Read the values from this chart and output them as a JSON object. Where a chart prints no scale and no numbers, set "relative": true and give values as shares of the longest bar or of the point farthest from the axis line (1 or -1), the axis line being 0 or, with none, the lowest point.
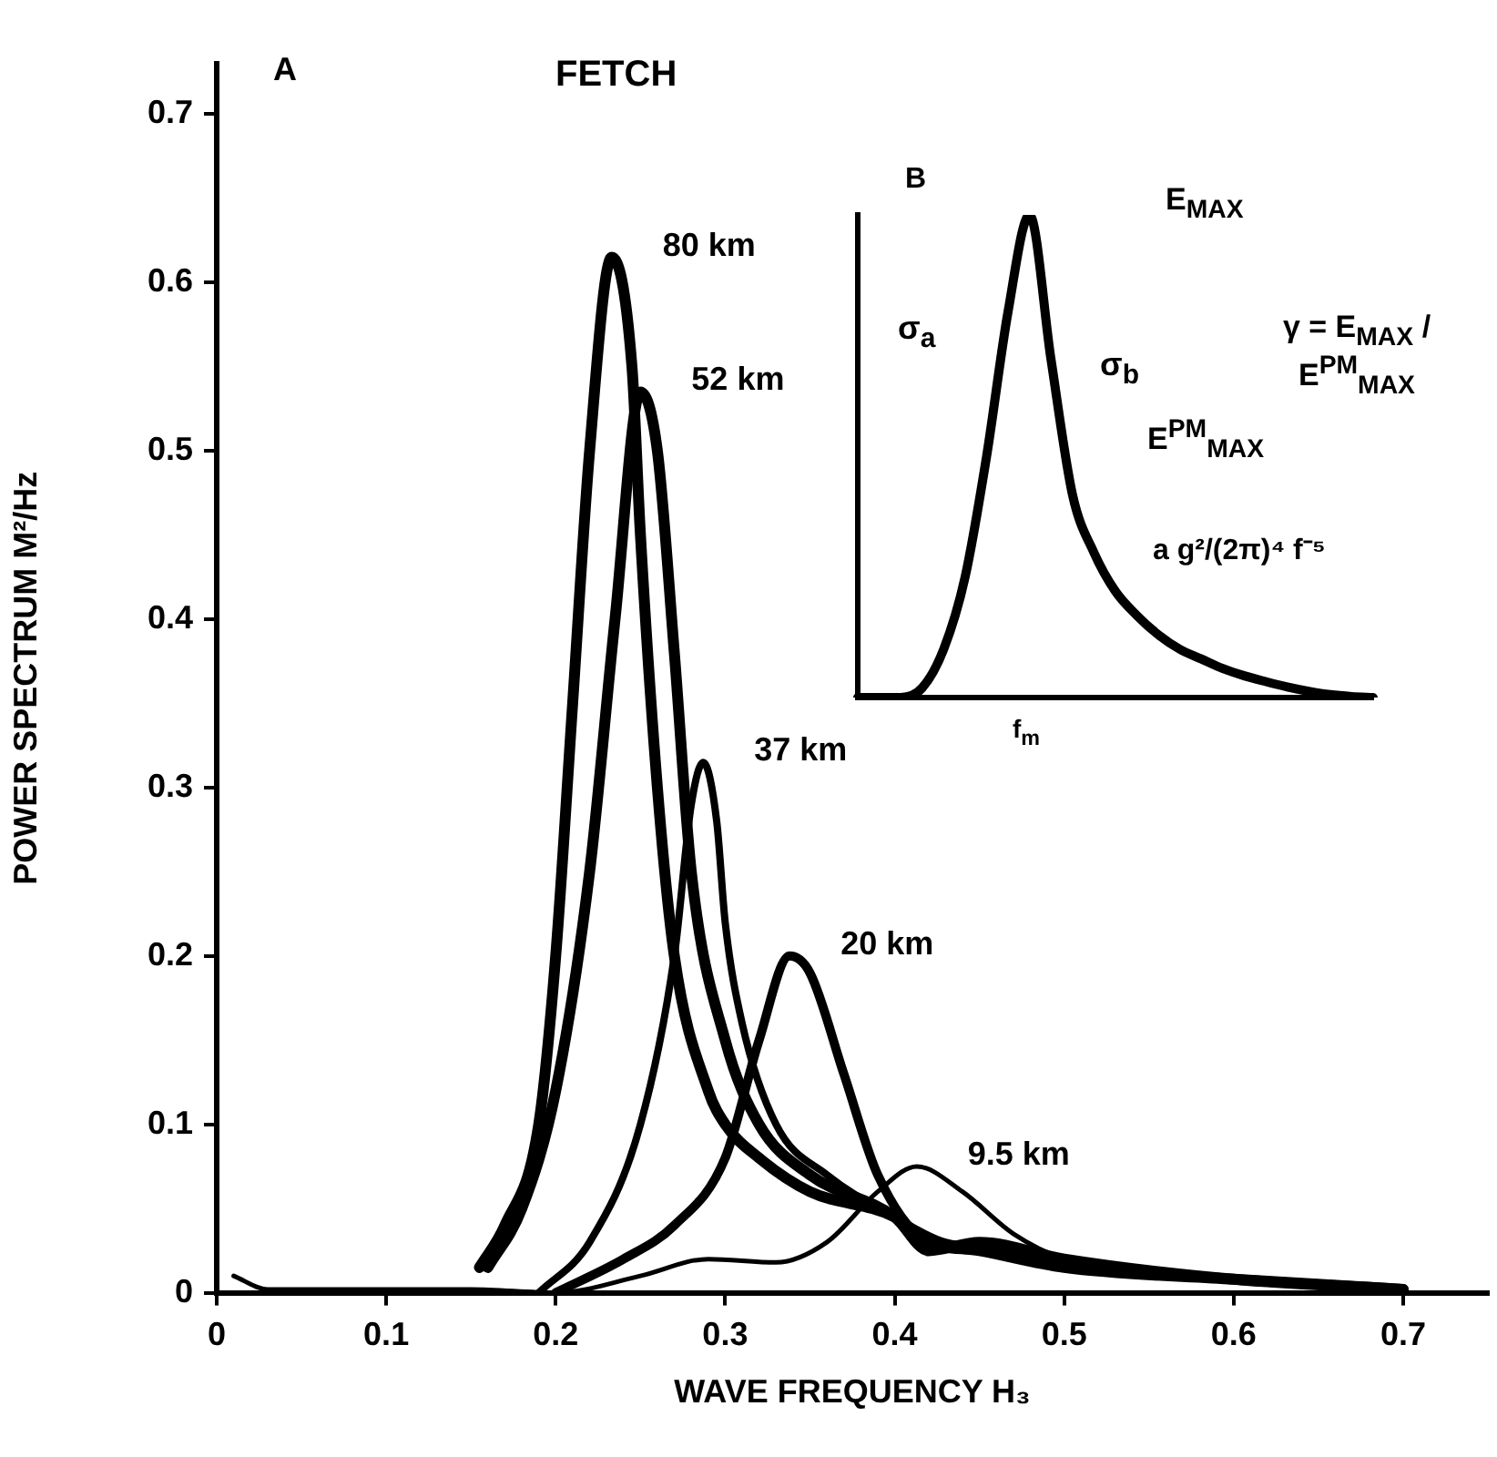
{
  "chart_data": [
    {
      "type": "line",
      "title": "FETCH",
      "xlabel": "WAVE FREQUENCY H₃",
      "ylabel": "POWER SPECTRUM M²/Hz",
      "annotations": [
        "A"
      ],
      "marker": "none",
      "xlim": [
        0,
        0.75
      ],
      "ylim": [
        0,
        0.73
      ],
      "xticks": [
        0,
        0.1,
        0.2,
        0.3,
        0.4,
        0.5,
        0.6,
        0.7
      ],
      "yticks": [
        0,
        0.1,
        0.2,
        0.3,
        0.4,
        0.5,
        0.6,
        0.7
      ],
      "series": [
        {
          "name": "80 km",
          "color": "#000000",
          "x": [
            0.155,
            0.17,
            0.19,
            0.2,
            0.21,
            0.22,
            0.233,
            0.245,
            0.25,
            0.26,
            0.27,
            0.29,
            0.3,
            0.32,
            0.35,
            0.4,
            0.42,
            0.45,
            0.5,
            0.6,
            0.7
          ],
          "values": [
            0.015,
            0.04,
            0.1,
            0.2,
            0.35,
            0.5,
            0.615,
            0.55,
            0.45,
            0.3,
            0.2,
            0.12,
            0.1,
            0.08,
            0.06,
            0.045,
            0.03,
            0.025,
            0.015,
            0.008,
            0.002
          ]
        },
        {
          "name": "52 km",
          "color": "#000000",
          "x": [
            0.16,
            0.18,
            0.2,
            0.22,
            0.235,
            0.25,
            0.26,
            0.27,
            0.28,
            0.3,
            0.32,
            0.35,
            0.4,
            0.42,
            0.45,
            0.5,
            0.6,
            0.7
          ],
          "values": [
            0.015,
            0.05,
            0.12,
            0.25,
            0.4,
            0.535,
            0.5,
            0.38,
            0.25,
            0.15,
            0.1,
            0.07,
            0.045,
            0.025,
            0.03,
            0.02,
            0.008,
            0.002
          ]
        },
        {
          "name": "37 km",
          "color": "#000000",
          "x": [
            0.19,
            0.22,
            0.25,
            0.27,
            0.28,
            0.287,
            0.295,
            0.3,
            0.31,
            0.33,
            0.36,
            0.4,
            0.43,
            0.46,
            0.5,
            0.6,
            0.7
          ],
          "values": [
            0,
            0.03,
            0.1,
            0.2,
            0.29,
            0.315,
            0.28,
            0.22,
            0.16,
            0.1,
            0.07,
            0.045,
            0.03,
            0.027,
            0.02,
            0.008,
            0.002
          ]
        },
        {
          "name": "20 km",
          "color": "#000000",
          "x": [
            0.2,
            0.24,
            0.27,
            0.3,
            0.32,
            0.338,
            0.35,
            0.37,
            0.39,
            0.42,
            0.45,
            0.5,
            0.6,
            0.7
          ],
          "values": [
            0,
            0.02,
            0.04,
            0.08,
            0.15,
            0.2,
            0.19,
            0.13,
            0.07,
            0.03,
            0.025,
            0.015,
            0.008,
            0.002
          ]
        },
        {
          "name": "9.5 km",
          "color": "#000000",
          "x": [
            0.01,
            0.03,
            0.15,
            0.2,
            0.25,
            0.29,
            0.33,
            0.36,
            0.39,
            0.413,
            0.44,
            0.47,
            0.5,
            0.55,
            0.6,
            0.7
          ],
          "values": [
            0.01,
            0.002,
            0.002,
            0,
            0.01,
            0.02,
            0.018,
            0.03,
            0.06,
            0.075,
            0.06,
            0.035,
            0.02,
            0.012,
            0.008,
            0.002
          ]
        }
      ]
    },
    {
      "type": "line",
      "relative": true,
      "marker": "none",
      "annotations": [
        "B",
        "E$_{MAX}$",
        "σ$_{a}$",
        "σ$_{b}$",
        "E$^{PM}$$_{MAX}$",
        "γ = E$_{MAX}$ / E$^{PM}$$_{MAX}$",
        "a g²/(2π)⁴ f⁻⁵",
        "f$_{m}$"
      ],
      "categories": [
        null,
        null,
        null,
        null,
        null,
        null,
        null,
        null,
        null,
        null,
        null,
        null,
        null,
        null,
        null,
        null,
        null,
        null,
        null,
        null,
        null,
        null,
        null,
        null,
        null
      ],
      "series": [
        {
          "color": "#000000",
          "values": [
            0,
            0,
            0,
            0.02,
            0.1,
            0.25,
            0.5,
            0.8,
            1,
            0.7,
            0.42,
            0.3,
            0.22,
            0.17,
            0.13,
            0.1,
            0.08,
            0.06,
            0.045,
            0.033,
            0.022,
            0.013,
            0.006,
            0.002,
            0
          ]
        }
      ]
    }
  ]
}
